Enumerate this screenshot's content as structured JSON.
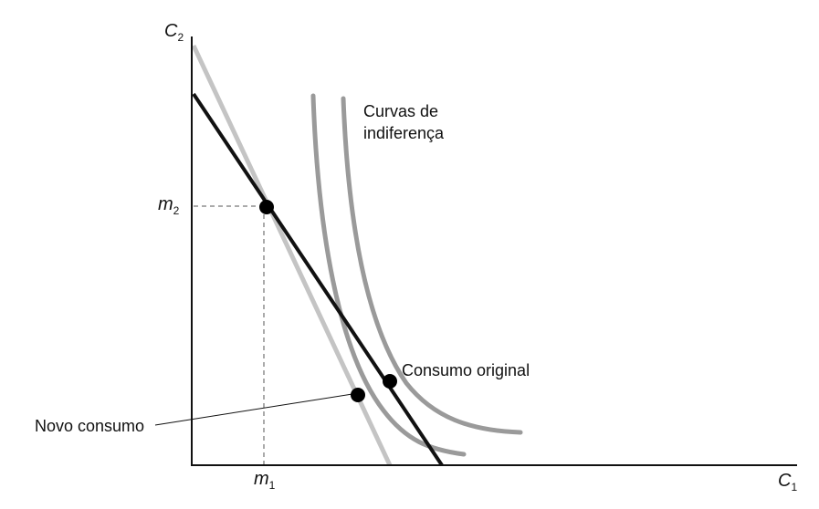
{
  "axes": {
    "y_label": "C",
    "y_label_sub": "2",
    "x_label": "C",
    "x_label_sub": "1"
  },
  "ticks": {
    "m2": "m",
    "m2_sub": "2",
    "m1": "m",
    "m1_sub": "1"
  },
  "labels": {
    "indifference_line1": "Curvas de",
    "indifference_line2": "indiferença",
    "original": "Consumo original",
    "new": "Novo consumo"
  },
  "colors": {
    "axis": "#111111",
    "budget_line_black": "#111111",
    "budget_line_gray": "#c4c4c4",
    "indifference_curve": "#9a9a9a",
    "guide_dashed": "#555555",
    "point": "#000000"
  }
}
